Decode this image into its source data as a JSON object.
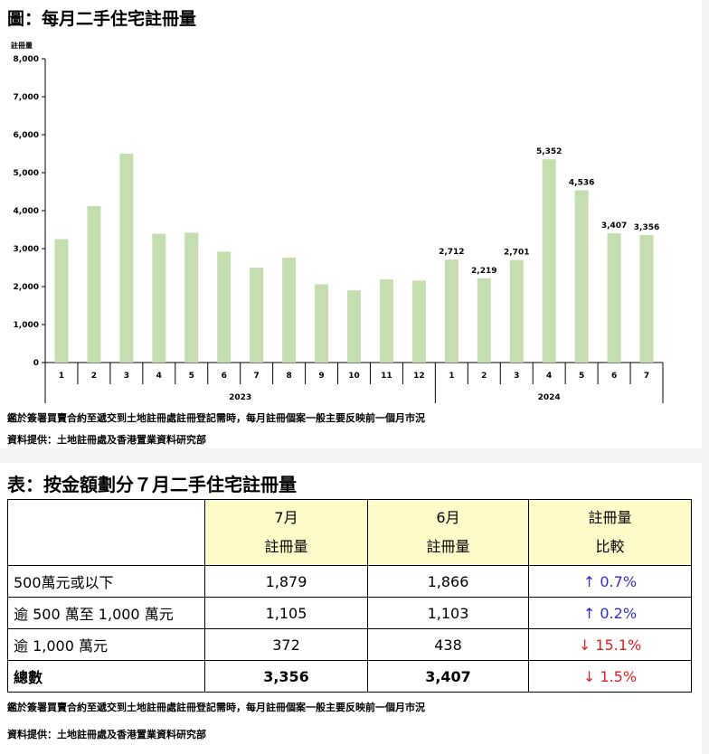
{
  "figure": {
    "title": "圖：每月二手住宅註冊量",
    "note": "鑑於簽署買賣合約至遞交到土地註冊處註冊登記需時，每月註冊個案一般主要反映前一個月市況",
    "source": "資料提供：土地註冊處及香港置業資料研究部"
  },
  "chart_data": {
    "type": "bar",
    "ylabel": "註冊量",
    "ylim": [
      0,
      8000
    ],
    "yticks": [
      "0",
      "1,000",
      "2,000",
      "3,000",
      "4,000",
      "5,000",
      "6,000",
      "7,000",
      "8,000"
    ],
    "categories": [
      "1",
      "2",
      "3",
      "4",
      "5",
      "6",
      "7",
      "8",
      "9",
      "10",
      "11",
      "12",
      "1",
      "2",
      "3",
      "4",
      "5",
      "6",
      "7"
    ],
    "year_groups": [
      {
        "label": "2023",
        "count": 12
      },
      {
        "label": "2024",
        "count": 7
      }
    ],
    "values": [
      3250,
      4120,
      5500,
      3390,
      3420,
      2920,
      2500,
      2760,
      2060,
      1900,
      2190,
      2160,
      2712,
      2219,
      2701,
      5352,
      4536,
      3407,
      3356
    ],
    "data_labels": [
      "",
      "",
      "",
      "",
      "",
      "",
      "",
      "",
      "",
      "",
      "",
      "",
      "2,712",
      "2,219",
      "2,701",
      "5,352",
      "4,536",
      "3,407",
      "3,356"
    ],
    "bar_color": "#c5deaf"
  },
  "table": {
    "title": "表：按金額劃分７月二手住宅註冊量",
    "headers": [
      {
        "line1": "",
        "line2": ""
      },
      {
        "line1": "7月",
        "line2": "註冊量"
      },
      {
        "line1": "6月",
        "line2": "註冊量"
      },
      {
        "line1": "註冊量",
        "line2": "比較"
      }
    ],
    "rows": [
      {
        "category": "500萬元或以下",
        "jul": "1,879",
        "jun": "1,866",
        "change": "↑ 0.7%"
      },
      {
        "category": "逾 500 萬至 1,000 萬元",
        "jul": "1,105",
        "jun": "1,103",
        "change": "↑ 0.2%"
      },
      {
        "category": "逾 1,000 萬元",
        "jul": "372",
        "jun": "438",
        "change": "↓ 15.1%"
      },
      {
        "category": "總數",
        "jul": "3,356",
        "jun": "3,407",
        "change": "↓ 1.5%"
      }
    ],
    "note": "鑑於簽署買賣合約至遞交到土地註冊處註冊登記需時，每月註冊個案一般主要反映前一個月市況",
    "source": "資料提供：土地註冊處及香港置業資料研究部"
  },
  "colors": {
    "up": "#2d2dcf",
    "down": "#e02020",
    "header_bg": "#fffbc8"
  }
}
